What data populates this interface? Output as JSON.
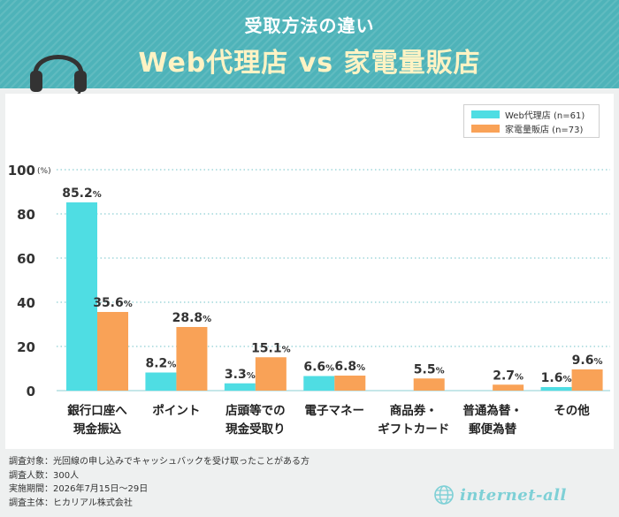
{
  "header": {
    "line1": "受取方法の違い",
    "line2": "Web代理店 vs 家電量販店"
  },
  "chart_data": {
    "type": "bar",
    "title": "受取方法の違い Web代理店 vs 家電量販店",
    "ylabel": "(%)",
    "ylim": [
      0,
      100
    ],
    "yticks": [
      "0",
      "20",
      "40",
      "60",
      "80",
      "100"
    ],
    "categories": [
      [
        "銀行口座へ",
        "現金振込"
      ],
      [
        "ポイント"
      ],
      [
        "店頭等での",
        "現金受取り"
      ],
      [
        "電子マネー"
      ],
      [
        "商品券・",
        "ギフトカード"
      ],
      [
        "普通為替・",
        "郵便為替"
      ],
      [
        "その他"
      ]
    ],
    "series": [
      {
        "name": "Web代理店 (n=61)",
        "color": "#4fdde3",
        "values": [
          85.2,
          8.2,
          3.3,
          6.6,
          0,
          0,
          1.6
        ],
        "labels": [
          "85.2%",
          "8.2%",
          "3.3%",
          "6.6%",
          "",
          "",
          "1.6%"
        ]
      },
      {
        "name": "家電量販店 (n=73)",
        "color": "#f9a257",
        "values": [
          35.6,
          28.8,
          15.1,
          6.8,
          5.5,
          2.7,
          9.6
        ],
        "labels": [
          "35.6%",
          "28.8%",
          "15.1%",
          "6.8%",
          "5.5%",
          "2.7%",
          "9.6%"
        ]
      }
    ],
    "grid": true,
    "legend_position": "top-right"
  },
  "notes": [
    "調査対象：光回線の申し込みでキャッシュバックを受け取ったことがある方",
    "調査人数：300人",
    "実施期間：2026年7月15日～29日",
    "調査主体：ヒカリアル株式会社"
  ],
  "logo": {
    "text": "internet-all",
    "icon": "globe-icon"
  },
  "icons": {
    "headset": "headset-icon"
  },
  "colors": {
    "header_bg": "#4eb3b9",
    "title_accent": "#fff3c4",
    "bar_web": "#4fdde3",
    "bar_store": "#f9a257"
  }
}
